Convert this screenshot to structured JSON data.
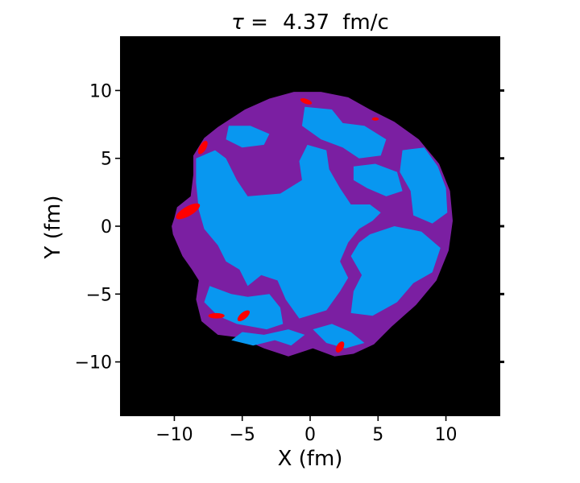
{
  "chart_data": {
    "type": "heatmap",
    "title_prefix": "τ =",
    "title_value": "4.37",
    "title_unit": "fm/c",
    "xlabel": "X (fm)",
    "ylabel": "Y (fm)",
    "xlim": [
      -14,
      14
    ],
    "ylim": [
      -14,
      14
    ],
    "xticks": [
      -10,
      -5,
      0,
      5,
      10
    ],
    "yticks": [
      -10,
      -5,
      0,
      5,
      10
    ],
    "xtick_labels": [
      "−10",
      "−5",
      "0",
      "5",
      "10"
    ],
    "ytick_labels": [
      "−10",
      "−5",
      "0",
      "5",
      "10"
    ],
    "grid": false,
    "colors": {
      "background": "#000000",
      "outer_region": "#7b1fa2",
      "inner_region": "#0897f0",
      "hot_spots": "#ff0000"
    },
    "outer_boundary": [
      [
        -10,
        0.6
      ],
      [
        -9.8,
        1.4
      ],
      [
        -8.8,
        2.2
      ],
      [
        -8.6,
        3.8
      ],
      [
        -8.6,
        5.2
      ],
      [
        -7.8,
        6.5
      ],
      [
        -6.8,
        7.3
      ],
      [
        -4.8,
        8.6
      ],
      [
        -3,
        9.4
      ],
      [
        -1.2,
        9.9
      ],
      [
        0.8,
        9.9
      ],
      [
        2.8,
        9.5
      ],
      [
        4.4,
        8.6
      ],
      [
        6.2,
        7.7
      ],
      [
        8,
        6.4
      ],
      [
        9.5,
        4.6
      ],
      [
        10.3,
        2.6
      ],
      [
        10.5,
        0.4
      ],
      [
        10.2,
        -1.8
      ],
      [
        9.3,
        -4
      ],
      [
        7.8,
        -5.8
      ],
      [
        6,
        -7.4
      ],
      [
        4.7,
        -8.7
      ],
      [
        3.2,
        -9.4
      ],
      [
        1.8,
        -9.6
      ],
      [
        0.2,
        -9
      ],
      [
        -1.6,
        -9.6
      ],
      [
        -3.4,
        -9
      ],
      [
        -5.2,
        -8.2
      ],
      [
        -6.8,
        -8
      ],
      [
        -8,
        -7
      ],
      [
        -8.4,
        -5.4
      ],
      [
        -8.2,
        -4
      ],
      [
        -8.7,
        -3.2
      ],
      [
        -9.4,
        -2.2
      ],
      [
        -10.1,
        -0.6
      ],
      [
        -10.2,
        0
      ]
    ],
    "inner_regions": [
      [
        [
          -6,
          7.4
        ],
        [
          -4.4,
          7.4
        ],
        [
          -3,
          6.8
        ],
        [
          -3.4,
          6
        ],
        [
          -5,
          5.8
        ],
        [
          -6.2,
          6.4
        ]
      ],
      [
        [
          -8.4,
          5
        ],
        [
          -7,
          5.6
        ],
        [
          -6.2,
          5
        ],
        [
          -5.4,
          3.4
        ],
        [
          -4.6,
          2.2
        ],
        [
          -2.2,
          2.4
        ],
        [
          -0.6,
          3.4
        ],
        [
          -0.8,
          4.8
        ],
        [
          -0.2,
          6
        ],
        [
          1.2,
          5.6
        ],
        [
          1.4,
          4.2
        ],
        [
          2.2,
          2.8
        ],
        [
          3,
          1.6
        ],
        [
          4.4,
          1.6
        ],
        [
          5.2,
          1
        ],
        [
          4.6,
          0.4
        ],
        [
          3.6,
          -0.2
        ],
        [
          2.8,
          -1.2
        ],
        [
          2.2,
          -2.6
        ],
        [
          2.8,
          -3.8
        ],
        [
          2.2,
          -4.8
        ],
        [
          1.2,
          -6.2
        ],
        [
          -0.8,
          -6.8
        ],
        [
          -1.8,
          -5.4
        ],
        [
          -2.4,
          -4
        ],
        [
          -3.6,
          -3.6
        ],
        [
          -4.6,
          -4.4
        ],
        [
          -5.2,
          -3.2
        ],
        [
          -6.2,
          -2.6
        ],
        [
          -6.8,
          -1.4
        ],
        [
          -7.8,
          -0.2
        ],
        [
          -8.2,
          1.2
        ],
        [
          -8.4,
          3.2
        ]
      ],
      [
        [
          -0.4,
          8.8
        ],
        [
          1.6,
          8.6
        ],
        [
          2.4,
          7.6
        ],
        [
          4,
          7.4
        ],
        [
          5.6,
          6.4
        ],
        [
          5.2,
          5.2
        ],
        [
          3.6,
          5
        ],
        [
          2.4,
          5.8
        ],
        [
          0.8,
          6.4
        ],
        [
          -0.6,
          7.4
        ]
      ],
      [
        [
          3.2,
          4.4
        ],
        [
          4.8,
          4.6
        ],
        [
          6.4,
          4
        ],
        [
          6.8,
          2.6
        ],
        [
          5.6,
          2.2
        ],
        [
          4.2,
          2.8
        ],
        [
          3.2,
          3.4
        ]
      ],
      [
        [
          6.8,
          5.6
        ],
        [
          8.4,
          5.8
        ],
        [
          9.4,
          4.4
        ],
        [
          10,
          2.8
        ],
        [
          10.1,
          1
        ],
        [
          9,
          0.2
        ],
        [
          7.6,
          0.8
        ],
        [
          7.4,
          2.6
        ],
        [
          6.6,
          4
        ]
      ],
      [
        [
          4.4,
          -0.6
        ],
        [
          6.2,
          0
        ],
        [
          8.2,
          -0.4
        ],
        [
          9.6,
          -1.6
        ],
        [
          9,
          -3.4
        ],
        [
          7.6,
          -4.2
        ],
        [
          6.4,
          -5.6
        ],
        [
          4.6,
          -6.6
        ],
        [
          3,
          -6.4
        ],
        [
          3.2,
          -4.8
        ],
        [
          3.8,
          -3.6
        ],
        [
          3,
          -2.2
        ],
        [
          3.6,
          -1.2
        ]
      ],
      [
        [
          -7.4,
          -4.4
        ],
        [
          -5.8,
          -5
        ],
        [
          -4.6,
          -5.2
        ],
        [
          -3,
          -5
        ],
        [
          -2.2,
          -6
        ],
        [
          -2,
          -7.2
        ],
        [
          -3.2,
          -7.6
        ],
        [
          -5.4,
          -7.2
        ],
        [
          -6.8,
          -6.6
        ],
        [
          -7.8,
          -5.6
        ]
      ],
      [
        [
          -5.8,
          -8.4
        ],
        [
          -4.2,
          -8.8
        ],
        [
          -2.6,
          -8.4
        ],
        [
          -1.4,
          -8.8
        ],
        [
          -0.4,
          -8
        ],
        [
          -1.6,
          -7.6
        ],
        [
          -3.4,
          -8
        ],
        [
          -5,
          -7.8
        ]
      ],
      [
        [
          0.2,
          -7.6
        ],
        [
          1.6,
          -7.2
        ],
        [
          3,
          -7.8
        ],
        [
          4,
          -8.6
        ],
        [
          2.6,
          -9
        ],
        [
          1.2,
          -8.6
        ]
      ]
    ],
    "hot_spots": [
      {
        "x": -7.9,
        "y": 5.8,
        "rx": 0.55,
        "ry": 0.25,
        "angle": 60
      },
      {
        "x": -9.0,
        "y": 1.1,
        "rx": 1.0,
        "ry": 0.35,
        "angle": 30
      },
      {
        "x": -0.3,
        "y": 9.2,
        "rx": 0.45,
        "ry": 0.18,
        "angle": -20
      },
      {
        "x": 4.8,
        "y": 7.9,
        "rx": 0.25,
        "ry": 0.12,
        "angle": 0
      },
      {
        "x": -6.9,
        "y": -6.6,
        "rx": 0.6,
        "ry": 0.2,
        "angle": 0
      },
      {
        "x": -4.9,
        "y": -6.6,
        "rx": 0.55,
        "ry": 0.25,
        "angle": 40
      },
      {
        "x": 2.2,
        "y": -8.9,
        "rx": 0.45,
        "ry": 0.25,
        "angle": 60
      }
    ]
  }
}
